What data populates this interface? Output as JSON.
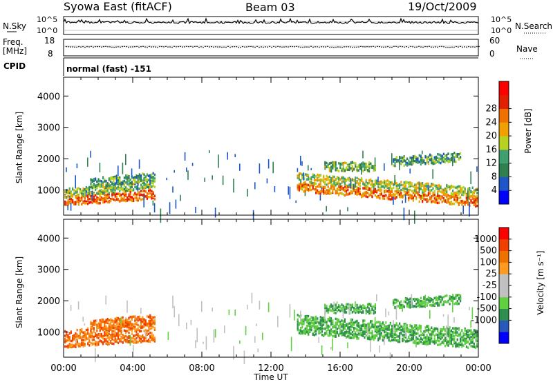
{
  "header": {
    "station": "Syowa East (fitACF)",
    "beam": "Beam 03",
    "date": "19/Oct/2009"
  },
  "noise_panel": {
    "left_label": "N.Sky",
    "right_label": "N.Search",
    "left_ticks": [
      "10^5",
      "10^0"
    ],
    "right_ticks": [
      "10^5",
      "10^0"
    ]
  },
  "freq_panel": {
    "left_label_line1": "Freq.",
    "left_label_line2": "[MHz]",
    "right_label": "Nave",
    "left_ticks": [
      "18",
      "8"
    ],
    "right_ticks": [
      "60",
      "0"
    ]
  },
  "cpid_panel": {
    "label": "CPID",
    "mode": "normal (fast) -151"
  },
  "colors": {
    "power_scale": [
      "#0000ff",
      "#1e56c8",
      "#2f7f4f",
      "#3f9f6f",
      "#b8d020",
      "#f0a000",
      "#f07000",
      "#e02000",
      "#ff0000"
    ],
    "velocity_scale": [
      "#ff0000",
      "#f04000",
      "#f07000",
      "#ff9a20",
      "#c0c0c0",
      "#c0c0c0",
      "#60d040",
      "#2f8f4f",
      "#2858b8",
      "#0000ff"
    ]
  },
  "chart_data": [
    {
      "type": "heatmap",
      "name": "power",
      "ylabel": "Slant Range [km]",
      "yticks": [
        "1000",
        "2000",
        "3000",
        "4000"
      ],
      "ylim": [
        200,
        4600
      ],
      "colorbar_label": "Power [dB]",
      "colorbar_ticks": [
        "4",
        "8",
        "12",
        "16",
        "20",
        "24",
        "28"
      ]
    },
    {
      "type": "heatmap",
      "name": "velocity",
      "ylabel": "Slant Range [km]",
      "yticks": [
        "1000",
        "2000",
        "3000",
        "4000"
      ],
      "ylim": [
        200,
        4600
      ],
      "colorbar_label": "Velocity [m s⁻¹]",
      "colorbar_ticks": [
        "1000",
        "500",
        "100",
        "25",
        "-25",
        "-100",
        "-500",
        "-1000"
      ],
      "xlabel": "Time UT",
      "xticks": [
        "00:00",
        "04:00",
        "08:00",
        "12:00",
        "16:00",
        "20:00",
        "00:00"
      ]
    }
  ]
}
